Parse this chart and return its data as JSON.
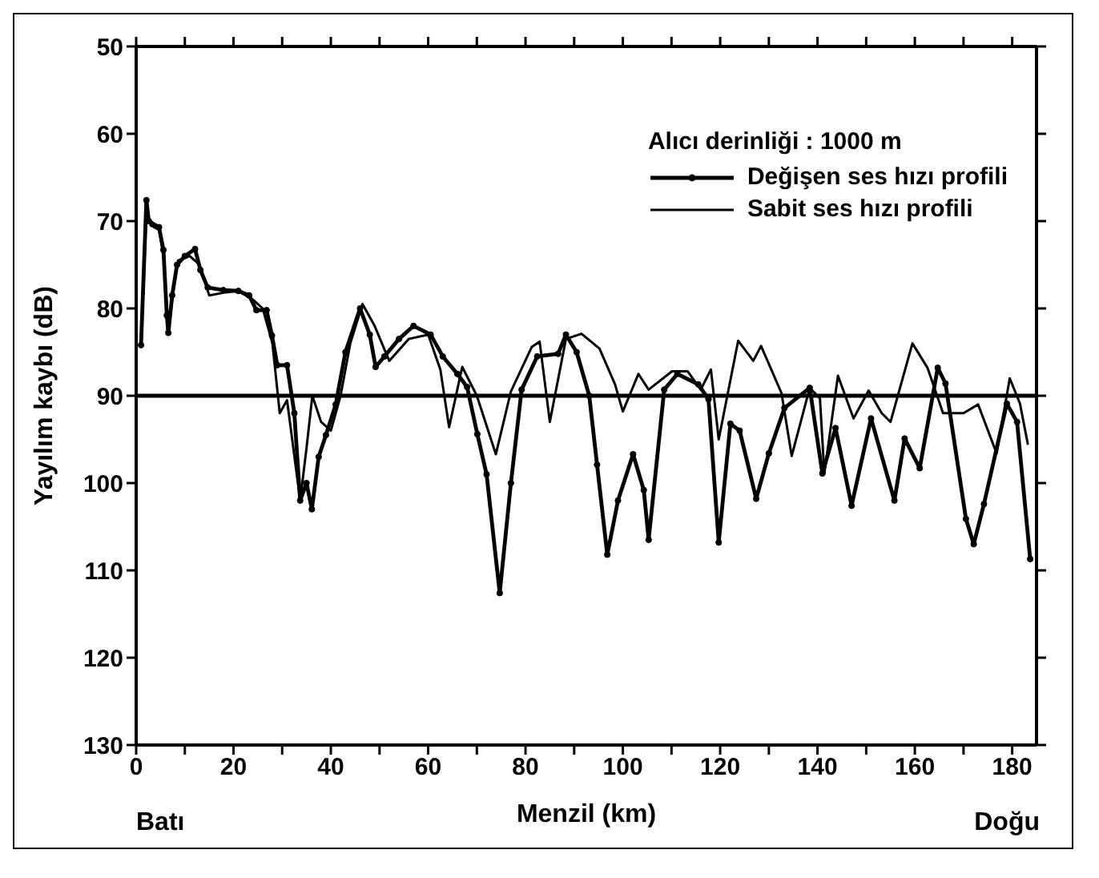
{
  "chart_data": {
    "type": "line",
    "xlabel": "Menzil (km)",
    "ylabel": "Yayılım kaybı (dB)",
    "legend_title": "Alıcı derinliği : 1000 m",
    "legend": "top right",
    "grid": false,
    "annotations": [
      "Batı",
      "Doğu"
    ],
    "xlim": [
      0,
      185
    ],
    "xticks": [
      0,
      {
        "value": 10,
        "label": null
      },
      20,
      {
        "value": 30,
        "label": null
      },
      40,
      {
        "value": 50,
        "label": null
      },
      60,
      {
        "value": 70,
        "label": null
      },
      80,
      {
        "value": 90,
        "label": null
      },
      100,
      {
        "value": 110,
        "label": null
      },
      120,
      {
        "value": 130,
        "label": null
      },
      140,
      {
        "value": 150,
        "label": null
      },
      160,
      {
        "value": 170,
        "label": null
      },
      180
    ],
    "ylim": [
      130,
      50
    ],
    "yticks": [
      50,
      60,
      70,
      80,
      90,
      100,
      110,
      120,
      130
    ],
    "ref_lines": [
      {
        "axis": "y",
        "value": 90,
        "color": "#000000"
      }
    ],
    "series": [
      {
        "name": "Değişen ses hızı profili",
        "color": "#000000",
        "marker": "circle",
        "x": [
          1,
          2.1,
          2.6,
          4.7,
          5.6,
          6.3,
          6.6,
          7.4,
          8.4,
          10,
          12.1,
          13.2,
          14.7,
          17.9,
          21,
          23.2,
          24.7,
          26.8,
          27.9,
          29,
          31,
          32.5,
          33.7,
          35,
          36.1,
          37.5,
          39,
          41,
          43,
          46,
          48,
          49.2,
          51,
          54,
          57,
          60.5,
          63,
          66,
          68,
          70.1,
          72,
          74.7,
          77,
          79.2,
          82.4,
          86.7,
          88.3,
          90.5,
          93.1,
          94.7,
          96.8,
          99,
          102.1,
          104.3,
          105.3,
          108.5,
          111.2,
          115.5,
          117.6,
          119.7,
          122.1,
          124,
          127.4,
          130,
          133.2,
          138.4,
          141,
          143.7,
          147,
          151,
          155.8,
          157.9,
          161,
          164.7,
          166.3,
          170.5,
          172.1,
          174.2,
          178.9,
          181,
          183.7
        ],
        "values": [
          84.2,
          67.6,
          70,
          70.7,
          73.3,
          80.8,
          82.8,
          78.5,
          75,
          74,
          73.2,
          75.6,
          77.6,
          77.9,
          78,
          78.5,
          80.2,
          80.2,
          83.1,
          86.5,
          86.5,
          92,
          102,
          100,
          103,
          97,
          94.5,
          91,
          85,
          80,
          83,
          86.7,
          85.5,
          83.5,
          82,
          83,
          85.5,
          87.5,
          89,
          94.4,
          99,
          112.6,
          100,
          89.3,
          85.5,
          85.2,
          83,
          85,
          90,
          97.9,
          108.2,
          102,
          96.7,
          100.8,
          106.5,
          89.3,
          87.5,
          88.7,
          90.4,
          106.8,
          93.2,
          94,
          101.8,
          96.6,
          91.4,
          89.1,
          98.9,
          93.7,
          102.6,
          92.6,
          102,
          94.9,
          98.3,
          86.8,
          88.6,
          104.1,
          107,
          102.4,
          90.9,
          93,
          108.7
        ]
      },
      {
        "name": "Sabit ses hızı profili",
        "color": "#000000",
        "x": [
          1,
          2.1,
          3,
          4.7,
          5.6,
          6.3,
          6.8,
          7.6,
          8.6,
          11,
          13,
          15,
          18,
          21,
          24,
          26,
          28,
          29.5,
          31,
          33.7,
          35,
          36.2,
          38,
          40,
          42,
          44,
          46.5,
          49,
          52,
          56,
          60,
          62.5,
          64.3,
          67,
          70,
          73.9,
          77,
          81.3,
          82.9,
          85,
          88.3,
          91.5,
          95.2,
          98.4,
          100,
          103.2,
          105.3,
          110.1,
          113.3,
          116,
          118.1,
          119.7,
          123.7,
          126.8,
          128.4,
          132.6,
          134.7,
          138.4,
          140.5,
          141.4,
          144.2,
          147.4,
          150.5,
          153.2,
          155,
          159.5,
          162.6,
          165.8,
          170,
          173,
          176.8,
          179.5,
          181.6,
          183.2
        ],
        "values": [
          84.2,
          69,
          70.5,
          71,
          74,
          80,
          82,
          78,
          74.5,
          74,
          75,
          78.5,
          78.2,
          78,
          79,
          80,
          84,
          92,
          90.5,
          102,
          96,
          90,
          93,
          94,
          90,
          84,
          79.5,
          82,
          86,
          83.5,
          83,
          87,
          93.6,
          86.7,
          90,
          96.7,
          89.5,
          84.4,
          83.8,
          93,
          83.5,
          82.9,
          84.6,
          88.7,
          91.8,
          87.5,
          89.3,
          87.2,
          87.2,
          89.3,
          87,
          95,
          83.7,
          86,
          84.3,
          89.7,
          96.9,
          89.1,
          90.3,
          98.9,
          87.7,
          92.6,
          89.4,
          92,
          93,
          84,
          86.8,
          92,
          92,
          91,
          96.6,
          88,
          90.9,
          95.5
        ]
      }
    ]
  }
}
